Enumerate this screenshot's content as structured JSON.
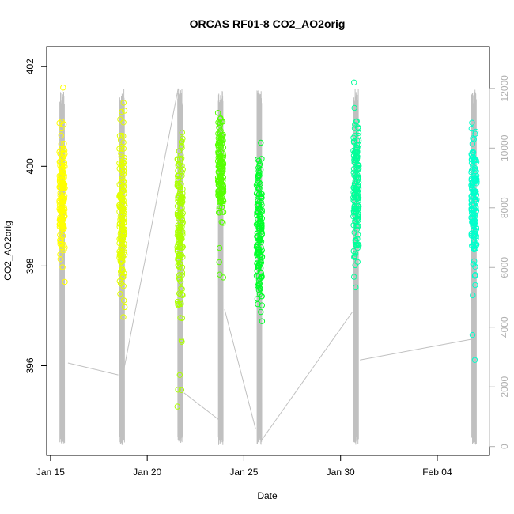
{
  "chart_data": {
    "type": "scatter",
    "title": "ORCAS RF01-8 CO2_AO2orig",
    "xlabel": "Date",
    "ylabel": "CO2_AO2orig",
    "x_ticks": [
      "Jan 15",
      "Jan 20",
      "Jan 25",
      "Jan 30",
      "Feb 04"
    ],
    "x_tick_days": [
      15,
      20,
      25,
      30,
      35
    ],
    "xlim_days": [
      14.8,
      37.7
    ],
    "y_left_ticks": [
      396,
      398,
      400,
      402
    ],
    "ylim_left": [
      394.2,
      402.4
    ],
    "y_right_ticks": [
      0,
      2000,
      4000,
      6000,
      8000,
      10000,
      12000
    ],
    "ylim_right": [
      -300,
      13400
    ],
    "right_axis_color": "#b0b0b0",
    "altitude_line_color": "#c0c0c0",
    "grid": false,
    "series": [
      {
        "flight_day": 15.6,
        "color": "#ffff00",
        "ymin": 397.5,
        "ymax": 401.7,
        "center": 399.4,
        "alt_gap": 2700
      },
      {
        "flight_day": 18.7,
        "color": "#e4ff00",
        "ymin": 395.0,
        "ymax": 401.3,
        "center": 399.0,
        "alt_gap": 3000
      },
      {
        "flight_day": 21.7,
        "color": "#aaff00",
        "ymin": 394.5,
        "ymax": 400.8,
        "center": 398.9,
        "alt_gap": 2200
      },
      {
        "flight_day": 23.8,
        "color": "#55ff00",
        "ymin": 397.5,
        "ymax": 401.5,
        "center": 399.8,
        "alt_gap": 1200
      },
      {
        "flight_day": 25.8,
        "color": "#00ff2a",
        "ymin": 395.8,
        "ymax": 401.3,
        "center": 398.7,
        "alt_gap": 500
      },
      {
        "flight_day": 30.8,
        "color": "#00ff99",
        "ymin": 397.1,
        "ymax": 402.2,
        "center": 399.6,
        "alt_gap": 2800
      },
      {
        "flight_day": 36.9,
        "color": "#00ffcc",
        "ymin": 396.1,
        "ymax": 401.1,
        "center": 399.3,
        "alt_gap": 3500
      }
    ],
    "altitude_connectors": [
      {
        "from_day": 15.9,
        "from_alt": 2800,
        "to_day": 18.5,
        "to_alt": 2400
      },
      {
        "from_day": 18.8,
        "from_alt": 2600,
        "to_day": 21.6,
        "to_alt": 12000
      },
      {
        "from_day": 21.9,
        "from_alt": 1800,
        "to_day": 23.7,
        "to_alt": 900
      },
      {
        "from_day": 24.0,
        "from_alt": 4600,
        "to_day": 25.6,
        "to_alt": 600
      },
      {
        "from_day": 25.9,
        "from_alt": 200,
        "to_day": 30.6,
        "to_alt": 4500
      },
      {
        "from_day": 31.0,
        "from_alt": 2900,
        "to_day": 36.8,
        "to_alt": 3600
      }
    ]
  }
}
